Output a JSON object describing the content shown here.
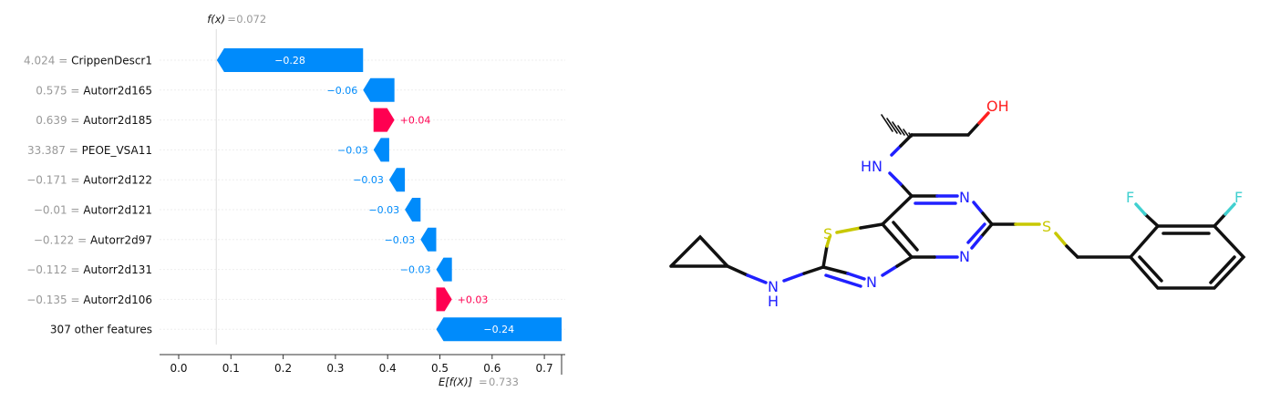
{
  "chart_data": {
    "type": "waterfall",
    "title": "",
    "fx_label": "f(x)",
    "fx_value": "0.072",
    "ex_label": "E[f(X)]",
    "ex_value": "0.733",
    "base_value": 0.733,
    "final_value": 0.072,
    "xlim": [
      -0.04,
      0.74
    ],
    "xticks": [
      "0.0",
      "0.1",
      "0.2",
      "0.3",
      "0.4",
      "0.5",
      "0.6",
      "0.7"
    ],
    "colors": {
      "negative": "#008bfb",
      "positive": "#ff0051"
    },
    "features": [
      {
        "value": "4.024",
        "name": "CrippenDescr1",
        "contribution": -0.28,
        "label": "−0.28"
      },
      {
        "value": "0.575",
        "name": "Autorr2d165",
        "contribution": -0.06,
        "label": "−0.06"
      },
      {
        "value": "0.639",
        "name": "Autorr2d185",
        "contribution": 0.04,
        "label": "+0.04"
      },
      {
        "value": "33.387",
        "name": "PEOE_VSA11",
        "contribution": -0.03,
        "label": "−0.03"
      },
      {
        "value": "−0.171",
        "name": "Autorr2d122",
        "contribution": -0.03,
        "label": "−0.03"
      },
      {
        "value": "−0.01",
        "name": "Autorr2d121",
        "contribution": -0.03,
        "label": "−0.03"
      },
      {
        "value": "−0.122",
        "name": "Autorr2d97",
        "contribution": -0.03,
        "label": "−0.03"
      },
      {
        "value": "−0.112",
        "name": "Autorr2d131",
        "contribution": -0.03,
        "label": "−0.03"
      },
      {
        "value": "−0.135",
        "name": "Autorr2d106",
        "contribution": 0.03,
        "label": "+0.03"
      },
      {
        "value": "",
        "name": "307 other features",
        "contribution": -0.24,
        "label": "−0.24"
      }
    ]
  },
  "molecule": {
    "atoms": {
      "OH": "OH",
      "HN": "HN",
      "N": "N",
      "S": "S",
      "F": "F",
      "H": "H"
    },
    "colors": {
      "N": "#2020ff",
      "O": "#ff2020",
      "S": "#c8c800",
      "F": "#40d0d0",
      "C": "#111111"
    }
  }
}
